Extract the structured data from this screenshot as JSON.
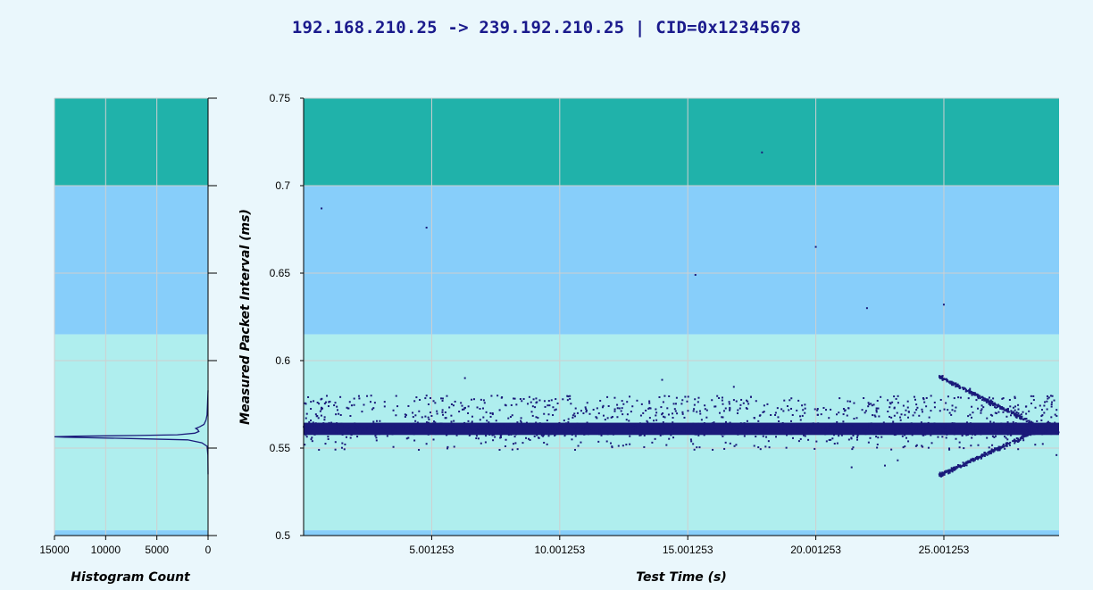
{
  "chart_data": [
    {
      "type": "line",
      "title": "",
      "xlabel": "Histogram Count",
      "ylabel": "",
      "x_reversed": true,
      "xlim": [
        0,
        15000
      ],
      "ylim": [
        0.5,
        0.75
      ],
      "x_ticks": [
        15000,
        10000,
        5000,
        0
      ],
      "x_tick_labels": [
        "15000",
        "10000",
        "5000",
        "0"
      ],
      "y_ticks": [
        0.5,
        0.55,
        0.6,
        0.65,
        0.7,
        0.75
      ],
      "grid": true,
      "bands": [
        {
          "from": 0.7,
          "to": 0.75,
          "color": "#20b2aa"
        },
        {
          "from": 0.615,
          "to": 0.7,
          "color": "#87cefa"
        },
        {
          "from": 0.503,
          "to": 0.615,
          "color": "#afeeee"
        },
        {
          "from": 0.5,
          "to": 0.503,
          "color": "#87cefa"
        }
      ],
      "line_color": "#1a1a7a",
      "series": [
        {
          "points": [
            [
              0,
              0.535
            ],
            [
              20,
              0.546
            ],
            [
              100,
              0.551
            ],
            [
              600,
              0.553
            ],
            [
              2000,
              0.5547
            ],
            [
              8000,
              0.5555
            ],
            [
              14000,
              0.5562
            ],
            [
              15000,
              0.5565
            ],
            [
              13000,
              0.5568
            ],
            [
              7000,
              0.5572
            ],
            [
              3000,
              0.5576
            ],
            [
              1300,
              0.5585
            ],
            [
              900,
              0.5595
            ],
            [
              1000,
              0.5605
            ],
            [
              1200,
              0.5612
            ],
            [
              800,
              0.5622
            ],
            [
              400,
              0.5635
            ],
            [
              200,
              0.566
            ],
            [
              100,
              0.569
            ],
            [
              50,
              0.575
            ],
            [
              0,
              0.583
            ]
          ]
        }
      ]
    },
    {
      "type": "scatter",
      "title": "192.168.210.25 -> 239.192.210.25 | CID=0x12345678",
      "xlabel": "Test Time (s)",
      "ylabel": "Measured Packet Interval (ms)",
      "xlim": [
        0,
        29.5
      ],
      "ylim": [
        0.5,
        0.75
      ],
      "x_ticks": [
        5.001253,
        10.001253,
        15.001253,
        20.001253,
        25.001253
      ],
      "x_tick_labels": [
        "5.001253",
        "10.001253",
        "15.001253",
        "20.001253",
        "25.001253"
      ],
      "y_ticks": [
        0.5,
        0.55,
        0.6,
        0.65,
        0.7,
        0.75
      ],
      "y_tick_labels": [
        "0.5",
        "0.55",
        "0.6",
        "0.65",
        "0.7",
        "0.75"
      ],
      "grid": true,
      "bands": [
        {
          "from": 0.7,
          "to": 0.75,
          "color": "#20b2aa"
        },
        {
          "from": 0.615,
          "to": 0.7,
          "color": "#87cefa"
        },
        {
          "from": 0.503,
          "to": 0.615,
          "color": "#afeeee"
        },
        {
          "from": 0.5,
          "to": 0.503,
          "color": "#87cefa"
        }
      ],
      "point_color": "#1a1a7a",
      "dense_band": {
        "x_from": 0,
        "x_to": 29.5,
        "y_center": 0.561,
        "y_halfwidth": 0.0035
      },
      "scatter_band": {
        "x_from": 0,
        "x_to": 29.5,
        "y_from": 0.549,
        "y_to": 0.58
      },
      "diverging_arms": [
        {
          "x0": 24.8,
          "y0": 0.591,
          "x1": 28.5,
          "y1": 0.564
        },
        {
          "x0": 24.8,
          "y0": 0.534,
          "x1": 28.5,
          "y1": 0.559
        }
      ],
      "outliers": [
        [
          0.7,
          0.687
        ],
        [
          4.8,
          0.676
        ],
        [
          15.3,
          0.649
        ],
        [
          17.9,
          0.719
        ],
        [
          20.0,
          0.665
        ],
        [
          22.0,
          0.63
        ],
        [
          25.0,
          0.632
        ],
        [
          6.3,
          0.59
        ],
        [
          14.0,
          0.589
        ],
        [
          16.8,
          0.585
        ],
        [
          21.4,
          0.539
        ],
        [
          22.7,
          0.54
        ],
        [
          23.2,
          0.543
        ],
        [
          29.4,
          0.546
        ],
        [
          25.4,
          0.587
        ],
        [
          0.6,
          0.549
        ],
        [
          4.5,
          0.549
        ],
        [
          10.6,
          0.549
        ],
        [
          12.6,
          0.552
        ]
      ]
    }
  ]
}
